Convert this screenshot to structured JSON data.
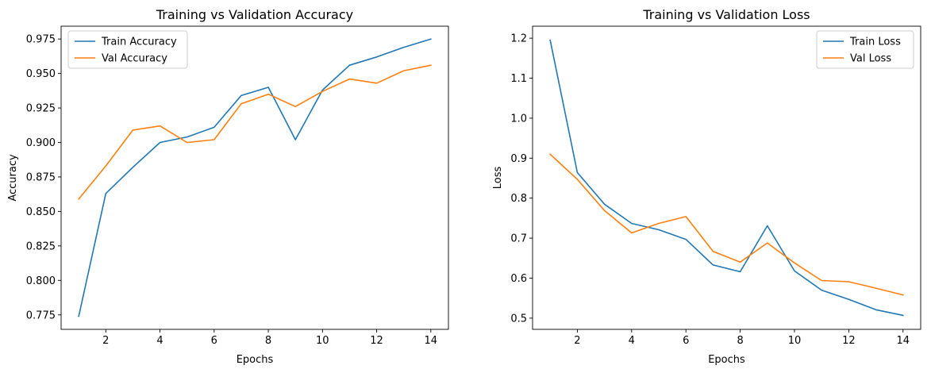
{
  "chart_data": [
    {
      "type": "line",
      "title": "Training vs Validation Accuracy",
      "xlabel": "Epochs",
      "ylabel": "Accuracy",
      "xlim": [
        0.35,
        14.65
      ],
      "ylim": [
        0.7645,
        0.9843
      ],
      "xticks": [
        2,
        4,
        6,
        8,
        10,
        12,
        14
      ],
      "yticks": [
        0.775,
        0.8,
        0.825,
        0.85,
        0.875,
        0.9,
        0.925,
        0.95,
        0.975
      ],
      "ytick_labels": [
        "0.775",
        "0.800",
        "0.825",
        "0.850",
        "0.875",
        "0.900",
        "0.925",
        "0.950",
        "0.975"
      ],
      "legend": "top-left",
      "grid": false,
      "x": [
        1,
        2,
        3,
        4,
        5,
        6,
        7,
        8,
        9,
        10,
        11,
        12,
        13,
        14
      ],
      "series": [
        {
          "name": "Train Accuracy",
          "color": "#1f77b4",
          "values": [
            0.774,
            0.863,
            0.882,
            0.9,
            0.904,
            0.911,
            0.934,
            0.94,
            0.902,
            0.938,
            0.956,
            0.962,
            0.969,
            0.975
          ]
        },
        {
          "name": "Val Accuracy",
          "color": "#ff7f0e",
          "values": [
            0.859,
            0.883,
            0.909,
            0.912,
            0.9,
            0.902,
            0.928,
            0.935,
            0.926,
            0.937,
            0.946,
            0.943,
            0.952,
            0.956
          ]
        }
      ]
    },
    {
      "type": "line",
      "title": "Training vs Validation Loss",
      "xlabel": "Epochs",
      "ylabel": "Loss",
      "xlim": [
        0.35,
        14.65
      ],
      "ylim": [
        0.472,
        1.23
      ],
      "xticks": [
        2,
        4,
        6,
        8,
        10,
        12,
        14
      ],
      "yticks": [
        0.5,
        0.6,
        0.7,
        0.8,
        0.9,
        1.0,
        1.1,
        1.2
      ],
      "ytick_labels": [
        "0.5",
        "0.6",
        "0.7",
        "0.8",
        "0.9",
        "1.0",
        "1.1",
        "1.2"
      ],
      "legend": "top-right",
      "grid": false,
      "x": [
        1,
        2,
        3,
        4,
        5,
        6,
        7,
        8,
        9,
        10,
        11,
        12,
        13,
        14
      ],
      "series": [
        {
          "name": "Train Loss",
          "color": "#1f77b4",
          "values": [
            1.195,
            0.864,
            0.785,
            0.737,
            0.721,
            0.697,
            0.633,
            0.616,
            0.731,
            0.618,
            0.57,
            0.547,
            0.521,
            0.507
          ]
        },
        {
          "name": "Val Loss",
          "color": "#ff7f0e",
          "values": [
            0.91,
            0.847,
            0.769,
            0.713,
            0.737,
            0.754,
            0.667,
            0.64,
            0.688,
            0.638,
            0.594,
            0.591,
            0.575,
            0.558
          ]
        }
      ]
    }
  ]
}
